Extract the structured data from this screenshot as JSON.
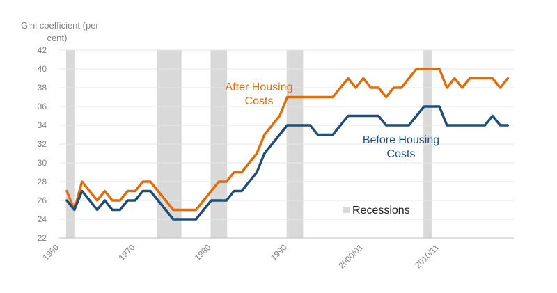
{
  "chart_data": {
    "type": "line",
    "ylabel_line1": "Gini coefficient (per",
    "ylabel_line2": "cent)",
    "ylim": [
      22,
      42
    ],
    "yticks": [
      22,
      24,
      26,
      28,
      30,
      32,
      34,
      36,
      38,
      40,
      42
    ],
    "xlim": [
      1960,
      2019
    ],
    "xticks": [
      {
        "label": "1960",
        "year": 1960
      },
      {
        "label": "1970",
        "year": 1970
      },
      {
        "label": "1980",
        "year": 1980
      },
      {
        "label": "1990",
        "year": 1990
      },
      {
        "label": "2000/01",
        "year": 2000
      },
      {
        "label": "2010/11",
        "year": 2010
      }
    ],
    "recessions": [
      [
        1961,
        1962
      ],
      [
        1973,
        1976
      ],
      [
        1980,
        1982
      ],
      [
        1990,
        1992
      ],
      [
        2008,
        2009
      ]
    ],
    "legend_label": "Recessions",
    "series": [
      {
        "name": "After Housing Costs",
        "label_line1": "After Housing",
        "label_line2": "Costs",
        "color": "#e36c0a",
        "x": [
          1961,
          1962,
          1963,
          1964,
          1965,
          1966,
          1967,
          1968,
          1969,
          1970,
          1971,
          1972,
          1973,
          1974,
          1975,
          1976,
          1977,
          1978,
          1979,
          1980,
          1981,
          1982,
          1983,
          1984,
          1985,
          1986,
          1987,
          1988,
          1989,
          1990,
          1991,
          1992,
          1993,
          1994,
          1995,
          1996,
          1997,
          1998,
          1999,
          2000,
          2001,
          2002,
          2003,
          2004,
          2005,
          2006,
          2007,
          2008,
          2009,
          2010,
          2011,
          2012,
          2013,
          2014,
          2015,
          2016,
          2017,
          2018,
          2019
        ],
        "values": [
          27,
          25,
          28,
          27,
          26,
          27,
          26,
          26,
          27,
          27,
          28,
          28,
          27,
          26,
          25,
          25,
          25,
          25,
          26,
          27,
          28,
          28,
          29,
          29,
          30,
          31,
          33,
          34,
          35,
          37,
          37,
          37,
          37,
          37,
          37,
          37,
          38,
          39,
          38,
          39,
          38,
          38,
          37,
          38,
          38,
          39,
          40,
          40,
          40,
          40,
          38,
          39,
          38,
          39,
          39,
          39,
          39,
          38,
          39
        ]
      },
      {
        "name": "Before Housing Costs",
        "label_line1": "Before Housing",
        "label_line2": "Costs",
        "color": "#1f4e79",
        "x": [
          1961,
          1962,
          1963,
          1964,
          1965,
          1966,
          1967,
          1968,
          1969,
          1970,
          1971,
          1972,
          1973,
          1974,
          1975,
          1976,
          1977,
          1978,
          1979,
          1980,
          1981,
          1982,
          1983,
          1984,
          1985,
          1986,
          1987,
          1988,
          1989,
          1990,
          1991,
          1992,
          1993,
          1994,
          1995,
          1996,
          1997,
          1998,
          1999,
          2000,
          2001,
          2002,
          2003,
          2004,
          2005,
          2006,
          2007,
          2008,
          2009,
          2010,
          2011,
          2012,
          2013,
          2014,
          2015,
          2016,
          2017,
          2018,
          2019
        ],
        "values": [
          26,
          25,
          27,
          26,
          25,
          26,
          25,
          25,
          26,
          26,
          27,
          27,
          26,
          25,
          24,
          24,
          24,
          24,
          25,
          26,
          26,
          26,
          27,
          27,
          28,
          29,
          31,
          32,
          33,
          34,
          34,
          34,
          34,
          33,
          33,
          33,
          34,
          35,
          35,
          35,
          35,
          35,
          34,
          34,
          34,
          34,
          35,
          36,
          36,
          36,
          34,
          34,
          34,
          34,
          34,
          34,
          35,
          34,
          34
        ]
      }
    ]
  }
}
